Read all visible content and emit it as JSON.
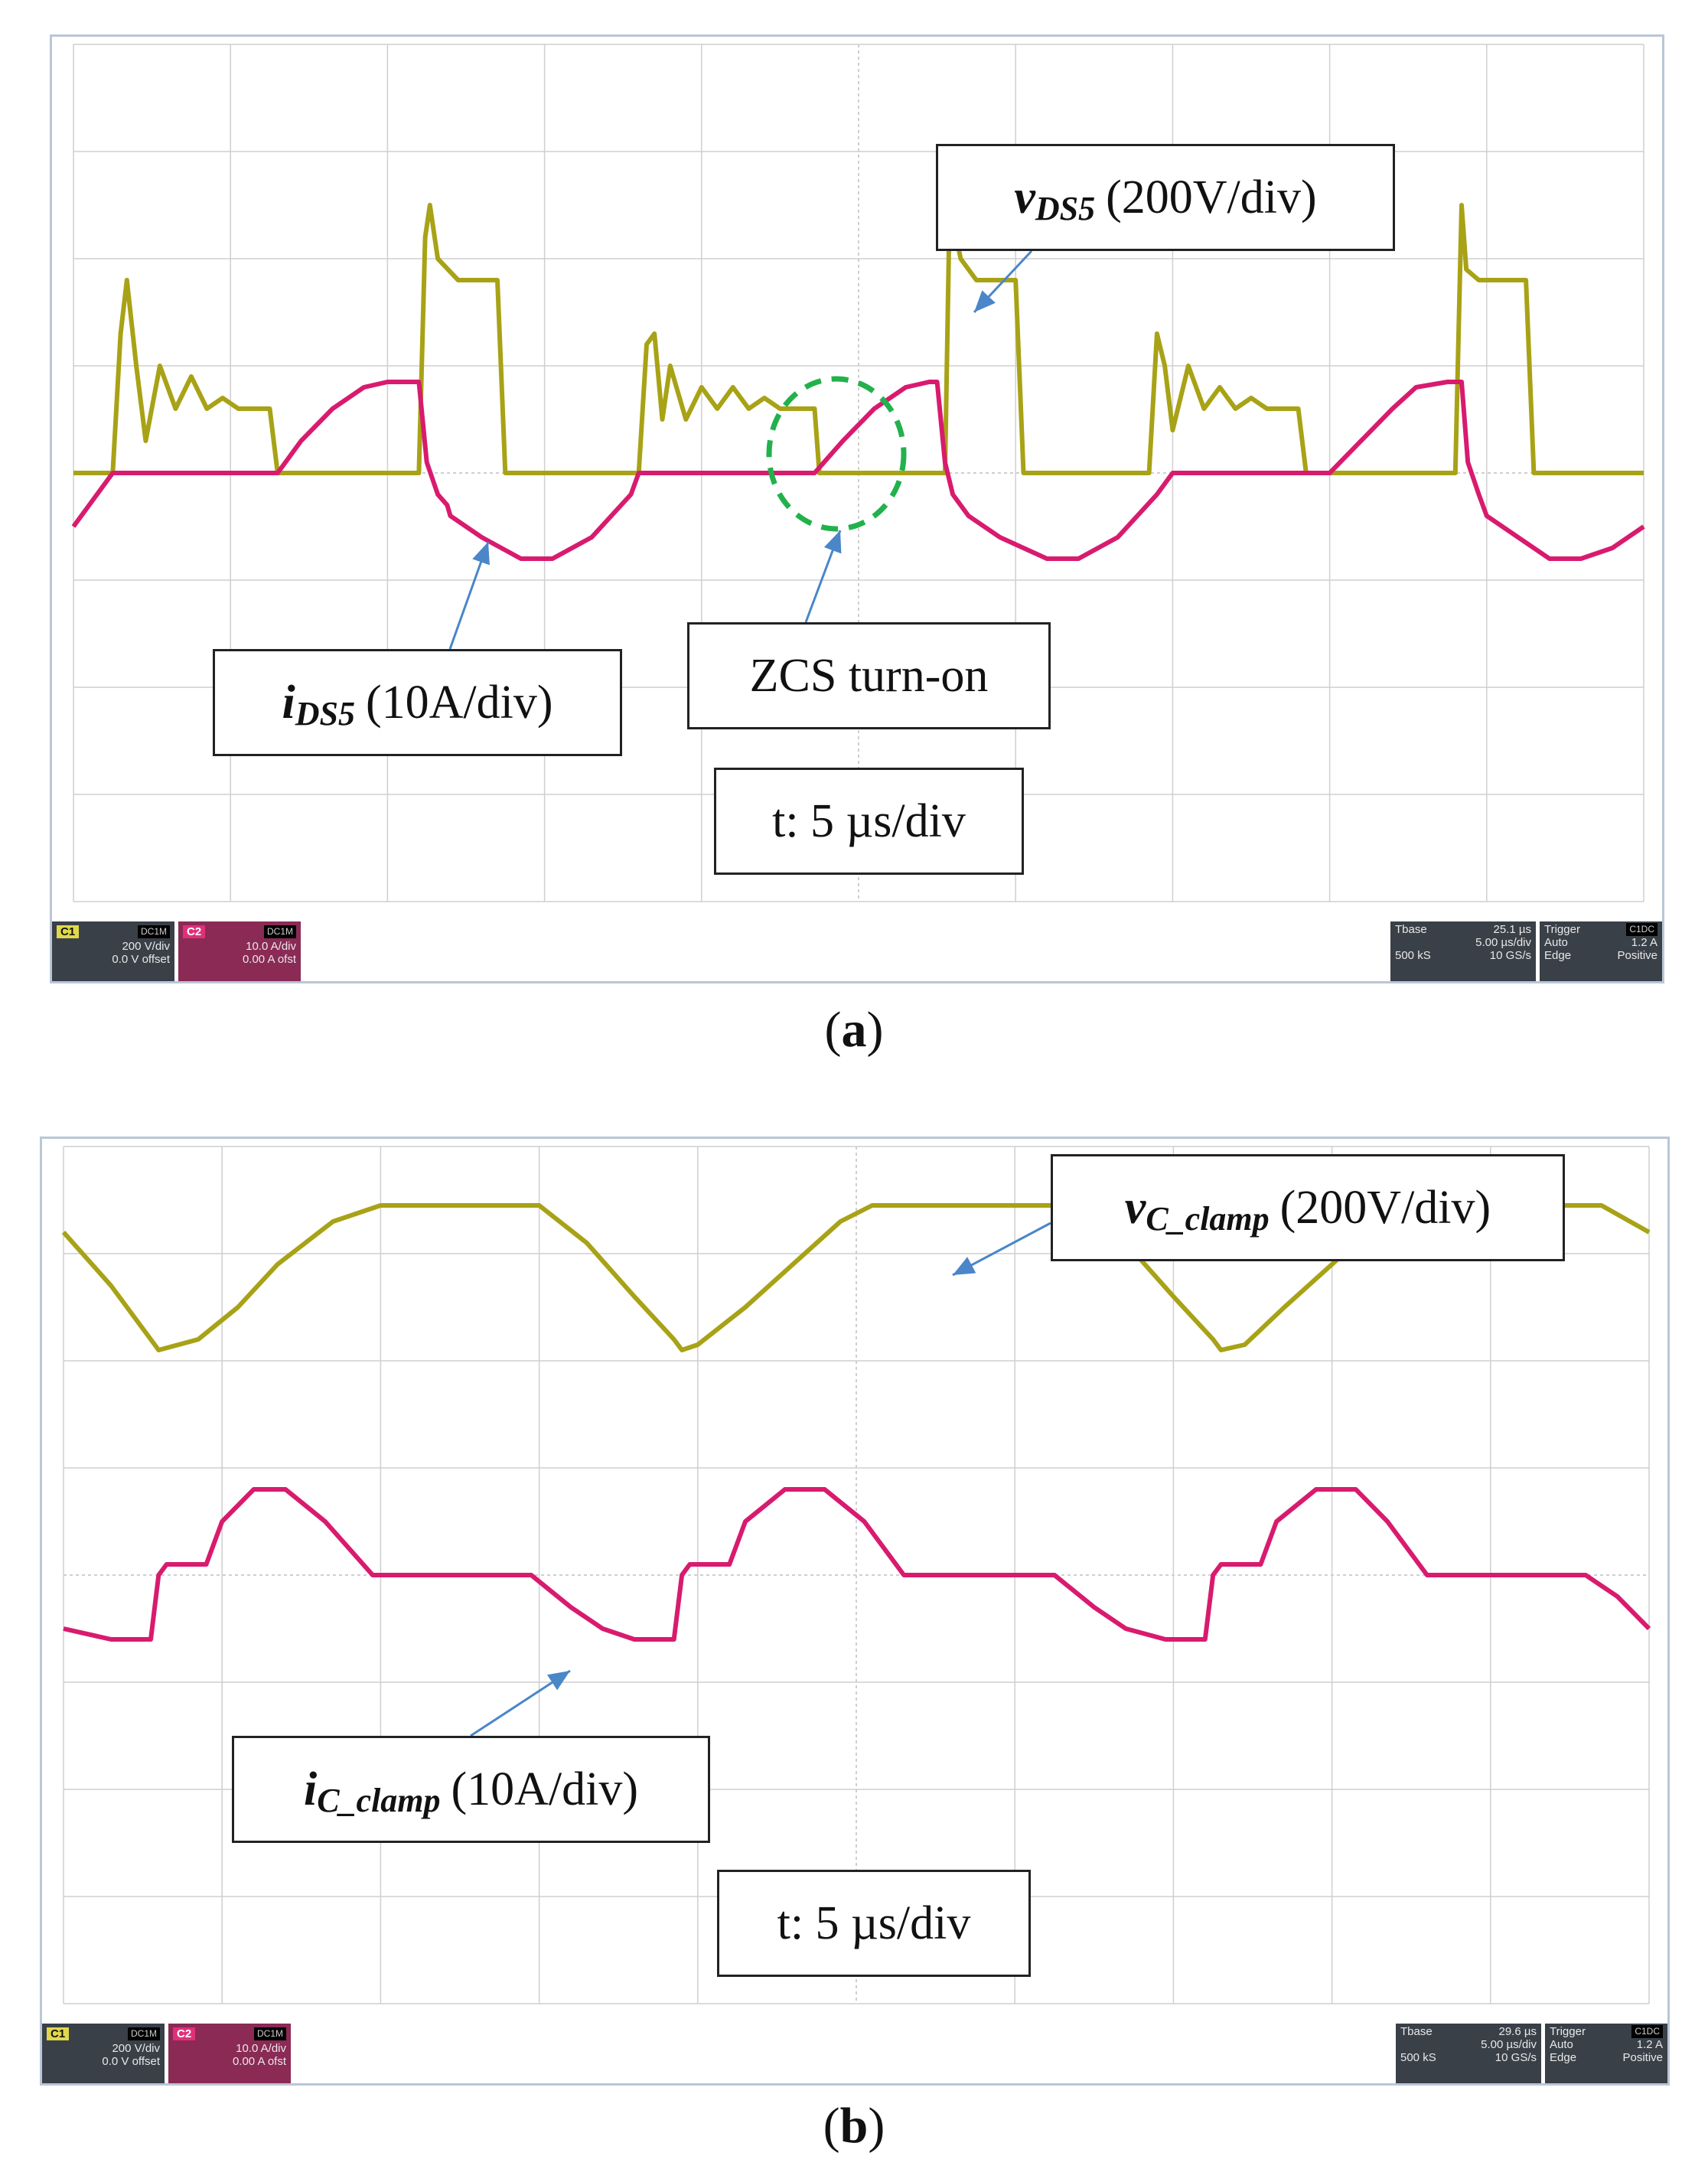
{
  "panels": [
    {
      "id": "a",
      "caption_letter": "a",
      "label_vds": {
        "symbol": "v",
        "subscript": "DS5",
        "scale": "(200V/div)"
      },
      "label_ids": {
        "symbol": "i",
        "subscript": "DS5",
        "scale": "(10A/div)"
      },
      "label_zcs": "ZCS turn-on",
      "label_time": "t: 5 µs/div",
      "status": {
        "ch1": {
          "tag": "C1",
          "badge": "DC1M",
          "scale": "200 V/div",
          "offset": "0.0 V offset"
        },
        "ch2": {
          "tag": "C2",
          "badge": "DC1M",
          "scale": "10.0 A/div",
          "offset": "0.00 A ofst"
        },
        "tbase": {
          "title": "Tbase",
          "delay": "25.1 µs",
          "tdiv": "5.00 µs/div",
          "samples": "500 kS",
          "rate": "10 GS/s"
        },
        "trigger": {
          "title": "Trigger",
          "badge": "C1DC",
          "mode": "Auto",
          "level": "1.2 A",
          "type": "Edge",
          "slope": "Positive"
        }
      }
    },
    {
      "id": "b",
      "caption_letter": "b",
      "label_vc": {
        "symbol": "v",
        "subscript": "C_clamp",
        "scale": "(200V/div)"
      },
      "label_ic": {
        "symbol": "i",
        "subscript": "C_clamp",
        "scale": "(10A/div)"
      },
      "label_time": "t: 5 µs/div",
      "status": {
        "ch1": {
          "tag": "C1",
          "badge": "DC1M",
          "scale": "200 V/div",
          "offset": "0.0 V offset"
        },
        "ch2": {
          "tag": "C2",
          "badge": "DC1M",
          "scale": "10.0 A/div",
          "offset": "0.00 A ofst"
        },
        "tbase": {
          "title": "Tbase",
          "delay": "29.6 µs",
          "tdiv": "5.00 µs/div",
          "samples": "500 kS",
          "rate": "10 GS/s"
        },
        "trigger": {
          "title": "Trigger",
          "badge": "C1DC",
          "mode": "Auto",
          "level": "1.2 A",
          "type": "Edge",
          "slope": "Positive"
        }
      }
    }
  ],
  "chart_data": [
    {
      "type": "line",
      "panel": "a",
      "grid": true,
      "x_divisions": 10,
      "y_divisions": 8,
      "xlabel": "t: 5 µs/div",
      "colors": {
        "voltage": "#a8a216",
        "current": "#d81b6e",
        "grid": "#cfcfcf"
      },
      "series": [
        {
          "name": "vDS5 (200V/div)",
          "unit": "div",
          "x": [
            0,
            0.25,
            0.3,
            0.34,
            0.4,
            0.46,
            0.55,
            0.65,
            0.75,
            0.85,
            0.95,
            1.05,
            1.25,
            1.3,
            1.38,
            2.2,
            2.24,
            2.27,
            2.32,
            2.45,
            2.6,
            2.7,
            2.75,
            2.8,
            3.0,
            3.6,
            3.65,
            3.7,
            3.75,
            3.8,
            3.9,
            4.0,
            4.1,
            4.2,
            4.3,
            4.4,
            4.5,
            4.6,
            4.72,
            4.75,
            5.5,
            5.55,
            5.58,
            5.65,
            5.75,
            5.9,
            6.0,
            6.05,
            6.1,
            6.8,
            6.85,
            6.9,
            6.95,
            7.0,
            7.1,
            7.2,
            7.3,
            7.4,
            7.5,
            7.6,
            7.8,
            7.85,
            8.5,
            8.8,
            8.84,
            8.87,
            8.95,
            9.1,
            9.25,
            9.3,
            9.35,
            10.0
          ],
          "y": [
            0,
            0,
            1.3,
            1.8,
            1.0,
            0.3,
            1.0,
            0.6,
            0.9,
            0.6,
            0.7,
            0.6,
            0.6,
            0,
            0,
            0,
            2.2,
            2.5,
            2.0,
            1.8,
            1.8,
            1.8,
            0,
            0,
            0,
            0,
            1.2,
            1.3,
            0.5,
            1.0,
            0.5,
            0.8,
            0.6,
            0.8,
            0.6,
            0.7,
            0.6,
            0.6,
            0.6,
            0,
            0,
            0,
            2.5,
            2.0,
            1.8,
            1.8,
            1.8,
            0,
            0,
            0,
            0,
            1.3,
            1.0,
            0.4,
            1.0,
            0.6,
            0.8,
            0.6,
            0.7,
            0.6,
            0.6,
            0,
            0,
            0,
            2.5,
            1.9,
            1.8,
            1.8,
            1.8,
            0,
            0,
            0
          ]
        },
        {
          "name": "iDS5 (10A/div)",
          "unit": "div",
          "x": [
            0,
            0.1,
            0.25,
            0.3,
            1.3,
            1.45,
            1.65,
            1.85,
            2.0,
            2.1,
            2.2,
            2.25,
            2.32,
            2.38,
            2.4,
            2.6,
            2.85,
            3.05,
            3.3,
            3.55,
            3.6,
            3.7,
            4.72,
            4.9,
            5.1,
            5.3,
            5.45,
            5.5,
            5.55,
            5.6,
            5.7,
            5.9,
            6.2,
            6.4,
            6.65,
            6.9,
            7.0,
            7.1,
            8.0,
            8.2,
            8.4,
            8.55,
            8.75,
            8.84,
            8.88,
            8.95,
            9.0,
            9.2,
            9.4,
            9.6,
            9.8,
            10.0
          ],
          "y": [
            -0.5,
            -0.3,
            0,
            0,
            0,
            0.3,
            0.6,
            0.8,
            0.85,
            0.85,
            0.85,
            0.1,
            -0.2,
            -0.3,
            -0.4,
            -0.6,
            -0.8,
            -0.8,
            -0.6,
            -0.2,
            0,
            0,
            0,
            0.3,
            0.6,
            0.8,
            0.85,
            0.85,
            0.1,
            -0.2,
            -0.4,
            -0.6,
            -0.8,
            -0.8,
            -0.6,
            -0.2,
            0,
            0,
            0,
            0.3,
            0.6,
            0.8,
            0.85,
            0.85,
            0.1,
            -0.2,
            -0.4,
            -0.6,
            -0.8,
            -0.8,
            -0.7,
            -0.5
          ]
        }
      ]
    },
    {
      "type": "line",
      "panel": "b",
      "grid": true,
      "x_divisions": 10,
      "y_divisions": 8,
      "xlabel": "t: 5 µs/div",
      "colors": {
        "voltage": "#a8a216",
        "current": "#d81b6e",
        "grid": "#cfcfcf"
      },
      "series": [
        {
          "name": "vC_clamp (200V/div)",
          "unit": "div",
          "x": [
            0,
            0.3,
            0.55,
            0.6,
            0.85,
            1.1,
            1.35,
            1.7,
            2.0,
            3.0,
            3.3,
            3.6,
            3.85,
            3.9,
            4.0,
            4.3,
            4.6,
            4.9,
            5.1,
            6.4,
            6.7,
            7.0,
            7.25,
            7.3,
            7.45,
            7.7,
            8.0,
            8.3,
            8.5,
            9.7,
            10.0
          ],
          "y": [
            2.0,
            1.5,
            1.0,
            0.9,
            1.0,
            1.3,
            1.7,
            2.1,
            2.25,
            2.25,
            1.9,
            1.4,
            1.0,
            0.9,
            0.95,
            1.3,
            1.7,
            2.1,
            2.25,
            2.25,
            1.9,
            1.4,
            1.0,
            0.9,
            0.95,
            1.3,
            1.7,
            2.1,
            2.25,
            2.25,
            2.0
          ]
        },
        {
          "name": "iC_clamp (10A/div)",
          "unit": "div",
          "x": [
            0,
            0.3,
            0.55,
            0.6,
            0.65,
            0.9,
            1.0,
            1.2,
            1.4,
            1.65,
            1.95,
            2.2,
            2.95,
            3.2,
            3.4,
            3.6,
            3.85,
            3.9,
            3.95,
            4.2,
            4.3,
            4.55,
            4.8,
            5.05,
            5.3,
            5.55,
            6.25,
            6.5,
            6.7,
            6.95,
            7.2,
            7.25,
            7.3,
            7.55,
            7.65,
            7.9,
            8.15,
            8.35,
            8.6,
            8.9,
            9.6,
            9.8,
            10.0
          ],
          "y": [
            -0.5,
            -0.6,
            -0.6,
            0,
            0.1,
            0.1,
            0.5,
            0.8,
            0.8,
            0.5,
            0,
            0,
            0,
            -0.3,
            -0.5,
            -0.6,
            -0.6,
            0,
            0.1,
            0.1,
            0.5,
            0.8,
            0.8,
            0.5,
            0,
            0,
            0,
            -0.3,
            -0.5,
            -0.6,
            -0.6,
            0,
            0.1,
            0.1,
            0.5,
            0.8,
            0.8,
            0.5,
            0,
            0,
            0,
            -0.2,
            -0.5
          ]
        }
      ]
    }
  ]
}
